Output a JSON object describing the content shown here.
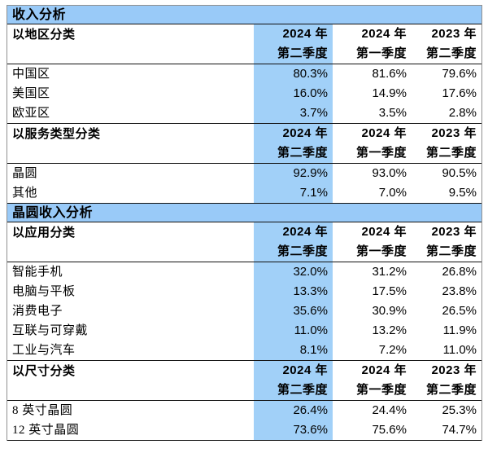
{
  "colors": {
    "band_bg": "#99CAF8",
    "highlight_bg": "#A1D0F8",
    "rule_color": "#111111",
    "frame_color": "#8f8f8f"
  },
  "chart_data": {
    "type": "table",
    "title": "收入分析",
    "columns": [
      {
        "year": "2024 年",
        "quarter": "第二季度",
        "highlight": true
      },
      {
        "year": "2024 年",
        "quarter": "第一季度",
        "highlight": false
      },
      {
        "year": "2023 年",
        "quarter": "第二季度",
        "highlight": false
      }
    ],
    "blocks": [
      {
        "type": "band",
        "title": "收入分析"
      },
      {
        "type": "group",
        "label": "以地区分类",
        "rows": [
          {
            "label": "中国区",
            "values": [
              "80.3%",
              "81.6%",
              "79.6%"
            ]
          },
          {
            "label": "美国区",
            "values": [
              "16.0%",
              "14.9%",
              "17.6%"
            ]
          },
          {
            "label": "欧亚区",
            "values": [
              "3.7%",
              "3.5%",
              "2.8%"
            ]
          }
        ]
      },
      {
        "type": "group",
        "label": "以服务类型分类",
        "rows": [
          {
            "label": "晶圆",
            "values": [
              "92.9%",
              "93.0%",
              "90.5%"
            ]
          },
          {
            "label": "其他",
            "values": [
              "7.1%",
              "7.0%",
              "9.5%"
            ]
          }
        ]
      },
      {
        "type": "band",
        "title": "晶圆收入分析"
      },
      {
        "type": "group",
        "label": "以应用分类",
        "rows": [
          {
            "label": "智能手机",
            "values": [
              "32.0%",
              "31.2%",
              "26.8%"
            ]
          },
          {
            "label": "电脑与平板",
            "values": [
              "13.3%",
              "17.5%",
              "23.8%"
            ]
          },
          {
            "label": "消费电子",
            "values": [
              "35.6%",
              "30.9%",
              "26.5%"
            ]
          },
          {
            "label": "互联与可穿戴",
            "values": [
              "11.0%",
              "13.2%",
              "11.9%"
            ]
          },
          {
            "label": "工业与汽车",
            "values": [
              "8.1%",
              "7.2%",
              "11.0%"
            ]
          }
        ]
      },
      {
        "type": "group",
        "label": "以尺寸分类",
        "rows": [
          {
            "label": "8 英寸晶圆",
            "values": [
              "26.4%",
              "24.4%",
              "25.3%"
            ]
          },
          {
            "label": "12 英寸晶圆",
            "values": [
              "73.6%",
              "75.6%",
              "74.7%"
            ]
          }
        ]
      }
    ]
  }
}
